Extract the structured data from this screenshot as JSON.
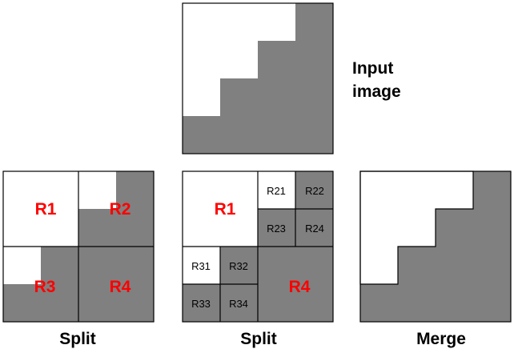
{
  "input_caption": [
    "Input",
    "image"
  ],
  "panels": {
    "split1": {
      "caption": "Split",
      "regions": [
        "R1",
        "R2",
        "R3",
        "R4"
      ]
    },
    "split2": {
      "caption": "Split",
      "regions": [
        "R1",
        "R21",
        "R22",
        "R23",
        "R24",
        "R31",
        "R32",
        "R33",
        "R34",
        "R4"
      ]
    },
    "merge": {
      "caption": "Merge"
    }
  },
  "colors": {
    "fill_dark": "#808080",
    "fill_light": "#ffffff",
    "stroke": "#000000",
    "label_red": "#ff0000"
  }
}
